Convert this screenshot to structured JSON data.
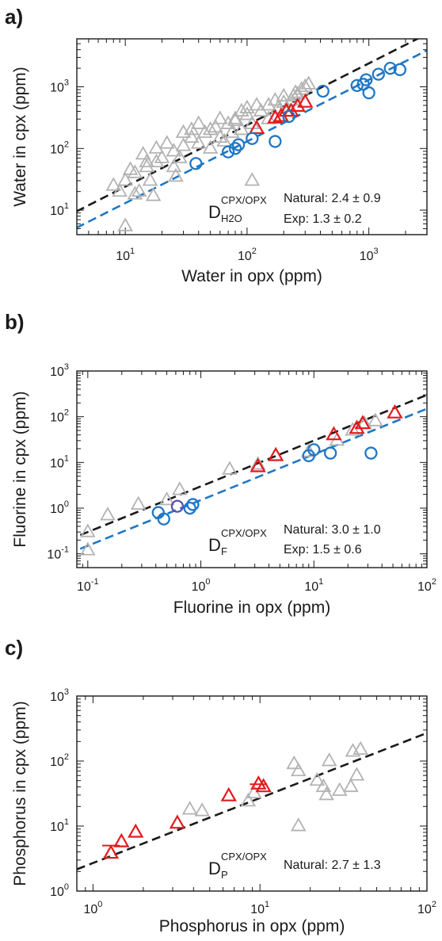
{
  "colors": {
    "natural": "#b3b3b3",
    "experiment": "#1f77c4",
    "highlight": "#e41a1c",
    "outlier": "#5a4fb0",
    "fit_natural": "#1a1a1a",
    "fit_exp": "#1f77c4"
  },
  "chart_data": [
    {
      "type": "scatter",
      "panel": "a)",
      "xlabel": "Water in opx (ppm)",
      "ylabel": "Water in cpx (ppm)",
      "xscale": "log",
      "yscale": "log",
      "xlim": [
        4,
        3000
      ],
      "ylim": [
        4,
        6000
      ],
      "grid": false,
      "x_ticks": [
        {
          "base": "10",
          "exp": "1",
          "value": 10
        },
        {
          "base": "10",
          "exp": "2",
          "value": 100
        },
        {
          "base": "10",
          "exp": "3",
          "value": 1000
        }
      ],
      "y_ticks": [
        {
          "base": "10",
          "exp": "1",
          "value": 10
        },
        {
          "base": "10",
          "exp": "2",
          "value": 100
        },
        {
          "base": "10",
          "exp": "3",
          "value": 1000
        }
      ],
      "partition": {
        "symbol": "D",
        "superscript": "CPX/OPX",
        "subscript": "H2O"
      },
      "annotations": [
        "Natural: 2.4 ± 0.9",
        "Exp: 1.3 ± 0.2"
      ],
      "fit_lines": [
        {
          "kind": "natural",
          "factor": 2.4
        },
        {
          "kind": "experiment",
          "factor": 1.3
        }
      ],
      "series": [
        {
          "kind": "natural",
          "marker": "triangle",
          "points": [
            [
              10,
              5.5
            ],
            [
              8,
              25
            ],
            [
              10,
              30
            ],
            [
              12,
              40
            ],
            [
              15,
              50
            ],
            [
              18,
              60
            ],
            [
              9,
              20
            ],
            [
              11,
              45
            ],
            [
              13,
              20
            ],
            [
              16,
              30
            ],
            [
              20,
              70
            ],
            [
              25,
              90
            ],
            [
              30,
              110
            ],
            [
              35,
              150
            ],
            [
              40,
              120
            ],
            [
              45,
              180
            ],
            [
              50,
              200
            ],
            [
              60,
              150
            ],
            [
              70,
              250
            ],
            [
              80,
              300
            ],
            [
              90,
              200
            ],
            [
              100,
              350
            ],
            [
              110,
              250
            ],
            [
              130,
              400
            ],
            [
              150,
              500
            ],
            [
              170,
              600
            ],
            [
              200,
              700
            ],
            [
              230,
              600
            ],
            [
              250,
              800
            ],
            [
              280,
              900
            ],
            [
              300,
              1000
            ],
            [
              320,
              1100
            ],
            [
              150,
              300
            ],
            [
              120,
              500
            ],
            [
              100,
              450
            ],
            [
              90,
              400
            ],
            [
              80,
              280
            ],
            [
              60,
              300
            ],
            [
              55,
              220
            ],
            [
              40,
              250
            ],
            [
              35,
              200
            ],
            [
              30,
              180
            ],
            [
              22,
              120
            ],
            [
              18,
              100
            ],
            [
              15,
              60
            ],
            [
              17,
              17
            ],
            [
              12,
              18
            ],
            [
              25,
              50
            ],
            [
              28,
              70
            ],
            [
              50,
              100
            ],
            [
              65,
              130
            ],
            [
              75,
              180
            ],
            [
              180,
              450
            ],
            [
              200,
              550
            ],
            [
              240,
              700
            ],
            [
              260,
              750
            ],
            [
              210,
              400
            ],
            [
              110,
              30
            ],
            [
              26,
              35
            ],
            [
              14,
              80
            ]
          ]
        },
        {
          "kind": "highlight",
          "marker": "triangle",
          "points": [
            [
              120,
              210
            ],
            [
              170,
              310
            ],
            [
              190,
              330
            ],
            [
              210,
              400
            ],
            [
              260,
              480
            ],
            [
              300,
              560
            ],
            [
              230,
              400
            ]
          ]
        },
        {
          "kind": "experiment",
          "marker": "circle",
          "points": [
            [
              38,
              57
            ],
            [
              70,
              88
            ],
            [
              80,
              100
            ],
            [
              85,
              115
            ],
            [
              110,
              145
            ],
            [
              170,
              130
            ],
            [
              220,
              330
            ],
            [
              420,
              850
            ],
            [
              800,
              1050
            ],
            [
              950,
              1300
            ],
            [
              1000,
              800
            ],
            [
              1200,
              1600
            ],
            [
              1500,
              2000
            ],
            [
              1800,
              1900
            ],
            [
              900,
              1100
            ]
          ]
        }
      ]
    },
    {
      "type": "scatter",
      "panel": "b)",
      "xlabel": "Fluorine in opx (ppm)",
      "ylabel": "Fluorine in cpx (ppm)",
      "xscale": "log",
      "yscale": "log",
      "xlim": [
        0.08,
        100
      ],
      "ylim": [
        0.05,
        1000
      ],
      "grid": false,
      "x_ticks": [
        {
          "base": "10",
          "exp": "-1",
          "value": 0.1
        },
        {
          "base": "10",
          "exp": "0",
          "value": 1
        },
        {
          "base": "10",
          "exp": "1",
          "value": 10
        },
        {
          "base": "10",
          "exp": "2",
          "value": 100
        }
      ],
      "y_ticks": [
        {
          "base": "10",
          "exp": "-1",
          "value": 0.1
        },
        {
          "base": "10",
          "exp": "0",
          "value": 1
        },
        {
          "base": "10",
          "exp": "1",
          "value": 10
        },
        {
          "base": "10",
          "exp": "2",
          "value": 100
        },
        {
          "base": "10",
          "exp": "3",
          "value": 1000
        }
      ],
      "partition": {
        "symbol": "D",
        "superscript": "CPX/OPX",
        "subscript": "F"
      },
      "annotations": [
        "Natural: 3.0 ± 1.0",
        "Exp: 1.5 ± 0.6"
      ],
      "fit_lines": [
        {
          "kind": "natural",
          "factor": 3.0
        },
        {
          "kind": "experiment",
          "factor": 1.5
        }
      ],
      "series": [
        {
          "kind": "natural",
          "marker": "triangle",
          "points": [
            [
              0.1,
              0.12
            ],
            [
              0.1,
              0.3
            ],
            [
              0.15,
              0.7
            ],
            [
              0.28,
              1.2
            ],
            [
              0.5,
              1.5
            ],
            [
              0.65,
              2.5
            ],
            [
              1.8,
              7
            ],
            [
              3.2,
              9
            ],
            [
              9,
              17
            ],
            [
              16,
              30
            ],
            [
              22,
              50
            ],
            [
              28,
              70
            ],
            [
              35,
              80
            ]
          ]
        },
        {
          "kind": "highlight",
          "marker": "triangle",
          "points": [
            [
              3.2,
              8
            ],
            [
              4.6,
              14
            ],
            [
              15,
              40
            ],
            [
              24,
              55
            ],
            [
              27,
              70
            ],
            [
              52,
              120
            ]
          ]
        },
        {
          "kind": "experiment",
          "marker": "circle",
          "points": [
            [
              0.42,
              0.8
            ],
            [
              0.47,
              0.58
            ],
            [
              0.8,
              1.0
            ],
            [
              0.85,
              1.2
            ],
            [
              9,
              14
            ],
            [
              10,
              19
            ],
            [
              14,
              16
            ],
            [
              32,
              16
            ]
          ]
        },
        {
          "kind": "outlier",
          "marker": "circle",
          "points": [
            [
              0.62,
              1.1
            ]
          ]
        }
      ]
    },
    {
      "type": "scatter",
      "panel": "c)",
      "xlabel": "Phosphorus in opx (ppm)",
      "ylabel": "Phosphorus in cpx (ppm)",
      "xscale": "log",
      "yscale": "log",
      "xlim": [
        0.8,
        100
      ],
      "ylim": [
        1,
        1000
      ],
      "grid": false,
      "x_ticks": [
        {
          "base": "10",
          "exp": "0",
          "value": 1
        },
        {
          "base": "10",
          "exp": "1",
          "value": 10
        },
        {
          "base": "10",
          "exp": "2",
          "value": 100
        }
      ],
      "y_ticks": [
        {
          "base": "10",
          "exp": "0",
          "value": 1
        },
        {
          "base": "10",
          "exp": "1",
          "value": 10
        },
        {
          "base": "10",
          "exp": "2",
          "value": 100
        },
        {
          "base": "10",
          "exp": "3",
          "value": 1000
        }
      ],
      "partition": {
        "symbol": "D",
        "superscript": "CPX/OPX",
        "subscript": "P"
      },
      "annotations": [
        "Natural: 2.7 ± 1.3"
      ],
      "fit_lines": [
        {
          "kind": "natural",
          "factor": 2.7
        }
      ],
      "series": [
        {
          "kind": "natural",
          "marker": "triangle",
          "points": [
            [
              3.8,
              18
            ],
            [
              4.5,
              17
            ],
            [
              8.5,
              24
            ],
            [
              9.2,
              32
            ],
            [
              16,
              90
            ],
            [
              17,
              70
            ],
            [
              17,
              10
            ],
            [
              22,
              50
            ],
            [
              24,
              40
            ],
            [
              25,
              30
            ],
            [
              26,
              100
            ],
            [
              30,
              35
            ],
            [
              35,
              40
            ],
            [
              36,
              140
            ],
            [
              38,
              60
            ],
            [
              40,
              150
            ]
          ]
        },
        {
          "kind": "highlight",
          "marker": "triangle",
          "points": [
            [
              1.28,
              3.8
            ],
            [
              1.48,
              5.7
            ],
            [
              1.8,
              8
            ],
            [
              3.2,
              11
            ],
            [
              6.5,
              29
            ],
            [
              9.8,
              44
            ],
            [
              10.5,
              40
            ]
          ],
          "error_bars": [
            [
              1.28,
              5
            ],
            [
              9.8,
              44
            ]
          ]
        }
      ]
    }
  ]
}
